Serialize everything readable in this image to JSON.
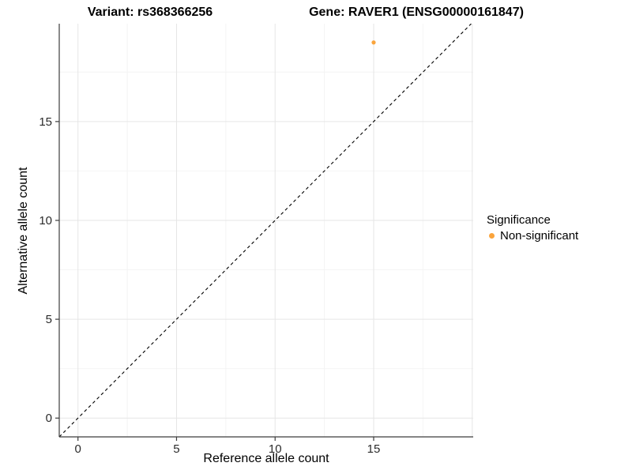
{
  "chart_data": {
    "type": "scatter",
    "title_left": "Variant: rs368366256",
    "title_right": "Gene: RAVER1 (ENSG00000161847)",
    "xlabel": "Reference allele count",
    "ylabel": "Alternative allele count",
    "xlim": [
      -0.95,
      20.05
    ],
    "ylim": [
      -0.95,
      19.95
    ],
    "xticks": [
      0,
      5,
      10,
      15
    ],
    "yticks": [
      0,
      5,
      10,
      15
    ],
    "xgrid_major": [
      0,
      5,
      10,
      15,
      20
    ],
    "ygrid_major": [
      0,
      5,
      10,
      15
    ],
    "xgrid_minor": [
      2.5,
      7.5,
      12.5,
      17.5
    ],
    "ygrid_minor": [
      2.5,
      7.5,
      12.5,
      17.5
    ],
    "grid": true,
    "identity_line": {
      "slope": 1,
      "intercept": 0,
      "style": "dashed",
      "color": "#000000"
    },
    "series": [
      {
        "name": "Non-significant",
        "color": "#FAA43C",
        "point_radius": 2.6,
        "points": [
          {
            "x": 15,
            "y": 19
          }
        ]
      }
    ],
    "legend": {
      "title": "Significance",
      "position": "right",
      "entries": [
        {
          "label": "Non-significant",
          "color": "#FAA43C"
        }
      ]
    },
    "style": {
      "axis_color": "#3c3c3c",
      "tick_label_color": "#2b2b2b",
      "grid_major_color": "#E6E6E6",
      "grid_minor_color": "#F4F4F4",
      "background": "#FFFFFF"
    }
  }
}
